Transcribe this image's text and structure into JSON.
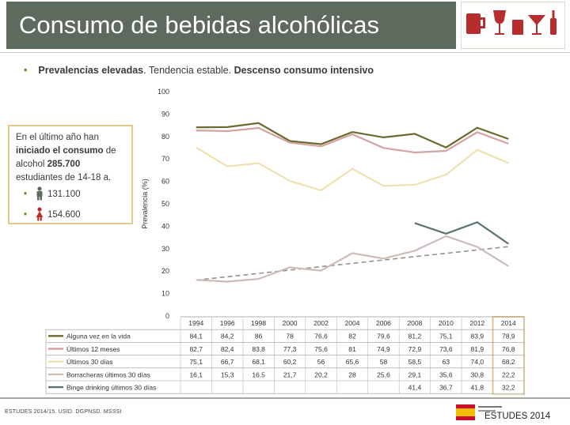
{
  "header": {
    "title": "Consumo de bebidas alcohólicas"
  },
  "bullet": {
    "part1": "Prevalencias elevadas",
    "part2": ". Tendencia estable. ",
    "part3": "Descenso consumo intensivo"
  },
  "callout": {
    "line1": "En el último año han",
    "line2a": "iniciado el consumo",
    "line2b": " de",
    "line3a": "alcohol ",
    "line3b": "285.700",
    "line4": "estudiantes de 14-18 a.",
    "male_value": "131.100",
    "female_value": "154.600"
  },
  "colors": {
    "title_bg": "#5f6a5f",
    "s_vida": "#6b6a2e",
    "s_12m": "#d6a3a3",
    "s_30d": "#f0e1b0",
    "s_borr": "#cdbcb8",
    "s_binge": "#5c7474",
    "trend": "#9a8f8c",
    "highlight": "#e7c98c"
  },
  "chart_data": {
    "type": "line",
    "title": "",
    "xlabel": "",
    "ylabel": "Prevalencia (%)",
    "ylim": [
      0,
      100
    ],
    "yticks": [
      0,
      10,
      20,
      30,
      40,
      50,
      60,
      70,
      80,
      90,
      100
    ],
    "categories": [
      "1994",
      "1996",
      "1998",
      "2000",
      "2002",
      "2004",
      "2006",
      "2008",
      "2010",
      "2012",
      "2014"
    ],
    "series": [
      {
        "key": "s_vida",
        "name": "Alguna vez en la vida",
        "values": [
          84.1,
          84.2,
          86,
          78,
          76.6,
          82,
          79.6,
          81.2,
          75.1,
          83.9,
          78.9
        ],
        "labels": [
          "84,1",
          "84,2",
          "86",
          "78",
          "76,6",
          "82",
          "79,6",
          "81,2",
          "75,1",
          "83,9",
          "78,9"
        ]
      },
      {
        "key": "s_12m",
        "name": "Últimos 12 meses",
        "values": [
          82.7,
          82.4,
          83.8,
          77.3,
          75.6,
          81,
          74.9,
          72.9,
          73.6,
          81.9,
          76.8
        ],
        "labels": [
          "82,7",
          "82,4",
          "83,8",
          "77,3",
          "75,6",
          "81",
          "74,9",
          "72,9",
          "73,6",
          "81,9",
          "76,8"
        ]
      },
      {
        "key": "s_30d",
        "name": "Últimos 30 días",
        "values": [
          75.1,
          66.7,
          68.1,
          60.2,
          56,
          65.6,
          58,
          58.5,
          63,
          74.0,
          68.2
        ],
        "labels": [
          "75,1",
          "66,7",
          "68,1",
          "60,2",
          "56",
          "65,6",
          "58",
          "58,5",
          "63",
          "74,0",
          "68,2"
        ]
      },
      {
        "key": "s_borr",
        "name": "Borracheras últimos 30 días",
        "values": [
          16.1,
          15.3,
          16.5,
          21.7,
          20.2,
          28,
          25.6,
          29.1,
          35.6,
          30.8,
          22.2
        ],
        "labels": [
          "16,1",
          "15,3",
          "16,5",
          "21,7",
          "20,2",
          "28",
          "25,6",
          "29,1",
          "35,6",
          "30,8",
          "22,2"
        ]
      },
      {
        "key": "s_binge",
        "name": "Binge drinking últimos 30 días",
        "values": [
          null,
          null,
          null,
          null,
          null,
          null,
          null,
          41.4,
          36.7,
          41.8,
          32.2
        ],
        "labels": [
          "",
          "",
          "",
          "",
          "",
          "",
          "",
          "41,4",
          "36,7",
          "41,8",
          "32,2"
        ]
      }
    ],
    "trendline": {
      "series": "Borracheras últimos 30 días",
      "from": 16,
      "to": 31,
      "style": "dashed"
    },
    "highlight_category": "2014"
  },
  "footer": {
    "source": "ESTUDES 2014/15. USID. DGPNSD. MSSSI",
    "mark": "ESTUDES 2014"
  }
}
